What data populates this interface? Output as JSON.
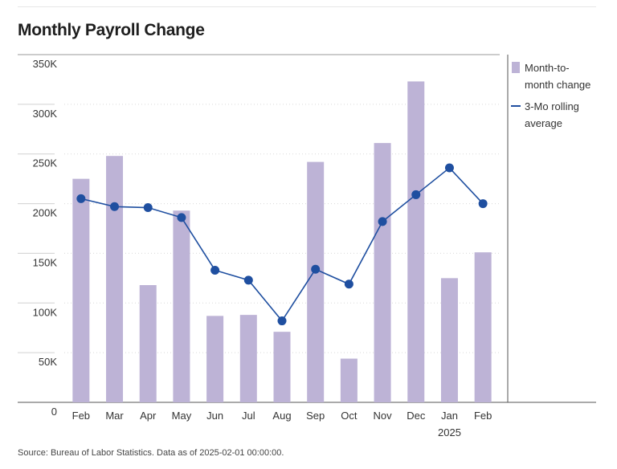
{
  "title": "Monthly Payroll Change",
  "source": "Source: Bureau of Labor Statistics. Data as of 2025-02-01 00:00:00.",
  "colors": {
    "bar": "#bdb3d6",
    "line": "#1f4fa0",
    "grid": "#d9d9d9",
    "axis": "#555555"
  },
  "legend": {
    "bar_label_lines": [
      "Month-to-",
      "month change"
    ],
    "line_label_lines": [
      "3-Mo rolling",
      "average"
    ]
  },
  "chart_data": {
    "type": "bar",
    "categories": [
      "Feb",
      "Mar",
      "Apr",
      "May",
      "Jun",
      "Jul",
      "Aug",
      "Sep",
      "Oct",
      "Nov",
      "Dec",
      "Jan",
      "Feb"
    ],
    "year_label": {
      "category_index": 11,
      "text": "2025"
    },
    "series": [
      {
        "name": "Month-to-month change",
        "type": "bar",
        "values": [
          225000,
          248000,
          118000,
          193000,
          87000,
          88000,
          71000,
          242000,
          44000,
          261000,
          323000,
          125000,
          151000
        ]
      },
      {
        "name": "3-Mo rolling average",
        "type": "line",
        "values": [
          205000,
          197000,
          196000,
          186000,
          133000,
          123000,
          82000,
          134000,
          119000,
          182000,
          209000,
          236000,
          200000
        ]
      }
    ],
    "ylim": [
      0,
      350000
    ],
    "yticks": [
      0,
      50000,
      100000,
      150000,
      200000,
      250000,
      300000,
      350000
    ],
    "ytick_labels": [
      "0",
      "50K",
      "100K",
      "150K",
      "200K",
      "250K",
      "300K",
      "350K"
    ],
    "xlabel": "",
    "ylabel": "",
    "grid": true,
    "legend_position": "right"
  }
}
